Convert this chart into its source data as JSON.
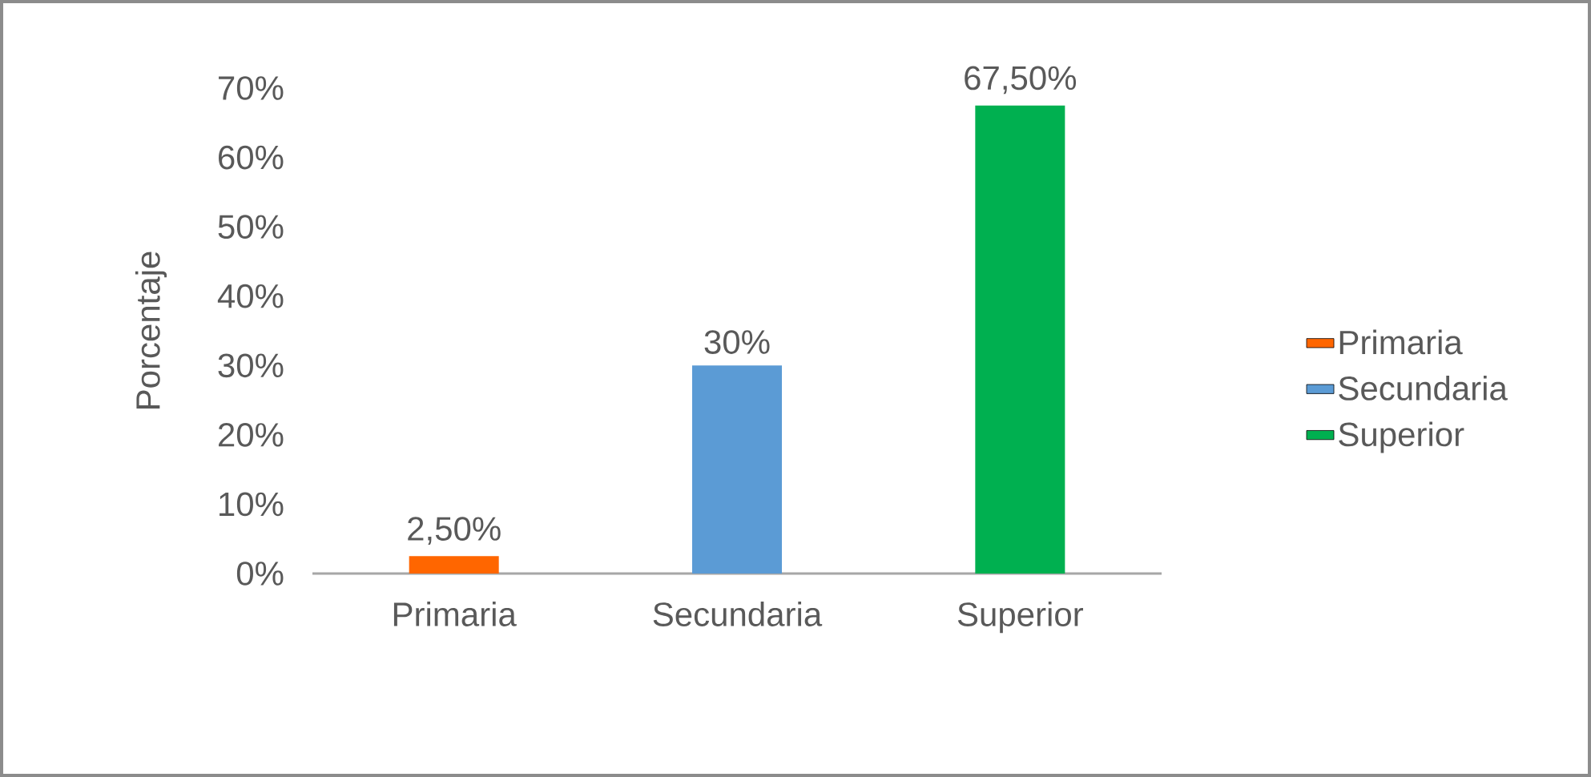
{
  "chart_data": {
    "type": "bar",
    "ylabel": "Porcentaje",
    "categories": [
      "Primaria",
      "Secundaria",
      "Superior"
    ],
    "series": [
      {
        "name": "Primaria",
        "color": "#ff6600",
        "values": [
          2.5,
          null,
          null
        ],
        "value_labels": [
          "2,50%",
          null,
          null
        ]
      },
      {
        "name": "Secundaria",
        "color": "#5b9bd5",
        "values": [
          null,
          30,
          null
        ],
        "value_labels": [
          null,
          "30%",
          null
        ]
      },
      {
        "name": "Superior",
        "color": "#00b050",
        "values": [
          null,
          null,
          67.5
        ],
        "value_labels": [
          null,
          null,
          "67,50%"
        ]
      }
    ],
    "ylim": [
      0,
      70
    ],
    "yticks": [
      {
        "value": 0,
        "label": "0%"
      },
      {
        "value": 10,
        "label": "10%"
      },
      {
        "value": 20,
        "label": "20%"
      },
      {
        "value": 30,
        "label": "30%"
      },
      {
        "value": 40,
        "label": "40%"
      },
      {
        "value": 50,
        "label": "50%"
      },
      {
        "value": 60,
        "label": "60%"
      },
      {
        "value": 70,
        "label": "70%"
      }
    ],
    "legend": "right"
  }
}
